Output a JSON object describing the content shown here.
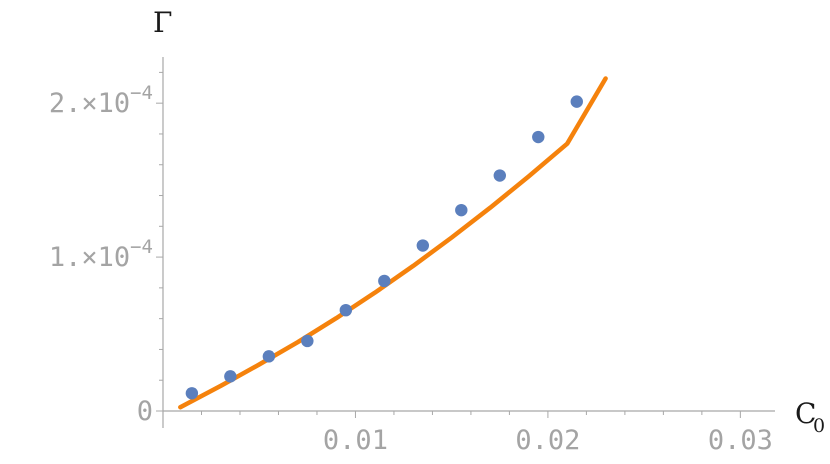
{
  "chart_data": {
    "type": "scatter",
    "xlabel": "C",
    "xlabel_subscript": "0",
    "ylabel": "Γ",
    "xlim": [
      0.0,
      0.0318
    ],
    "ylim": [
      0.0,
      0.00023
    ],
    "x_ticks": [
      {
        "value": 0.01,
        "label": "0.01"
      },
      {
        "value": 0.02,
        "label": "0.02"
      },
      {
        "value": 0.03,
        "label": "0.03"
      }
    ],
    "y_ticks": [
      {
        "value": 0.0,
        "label": "0"
      },
      {
        "value": 0.0001,
        "label": "1.×10",
        "exp": "−4"
      },
      {
        "value": 0.0002,
        "label": "2.×10",
        "exp": "−4"
      }
    ],
    "grid": false,
    "series": [
      {
        "kind": "points",
        "color": "#5b7fbd",
        "x": [
          0.0015,
          0.0035,
          0.0055,
          0.0075,
          0.0095,
          0.0115,
          0.0135,
          0.0155,
          0.0175,
          0.0195,
          0.0215
        ],
        "y": [
          1.15e-05,
          2.25e-05,
          3.55e-05,
          4.55e-05,
          6.55e-05,
          8.45e-05,
          0.0001075,
          0.0001305,
          0.000153,
          0.000178,
          0.000201
        ]
      },
      {
        "kind": "fit-line",
        "color": "#f5820c",
        "x": [
          0.0009,
          0.003,
          0.005,
          0.007,
          0.009,
          0.011,
          0.013,
          0.015,
          0.017,
          0.019,
          0.021,
          0.023
        ],
        "y": [
          2.5e-06,
          1.63e-05,
          3.02e-05,
          4.47e-05,
          6.03e-05,
          7.68e-05,
          9.43e-05,
          0.0001127,
          0.0001321,
          0.0001524,
          0.0001737,
          0.000216
        ]
      }
    ]
  }
}
